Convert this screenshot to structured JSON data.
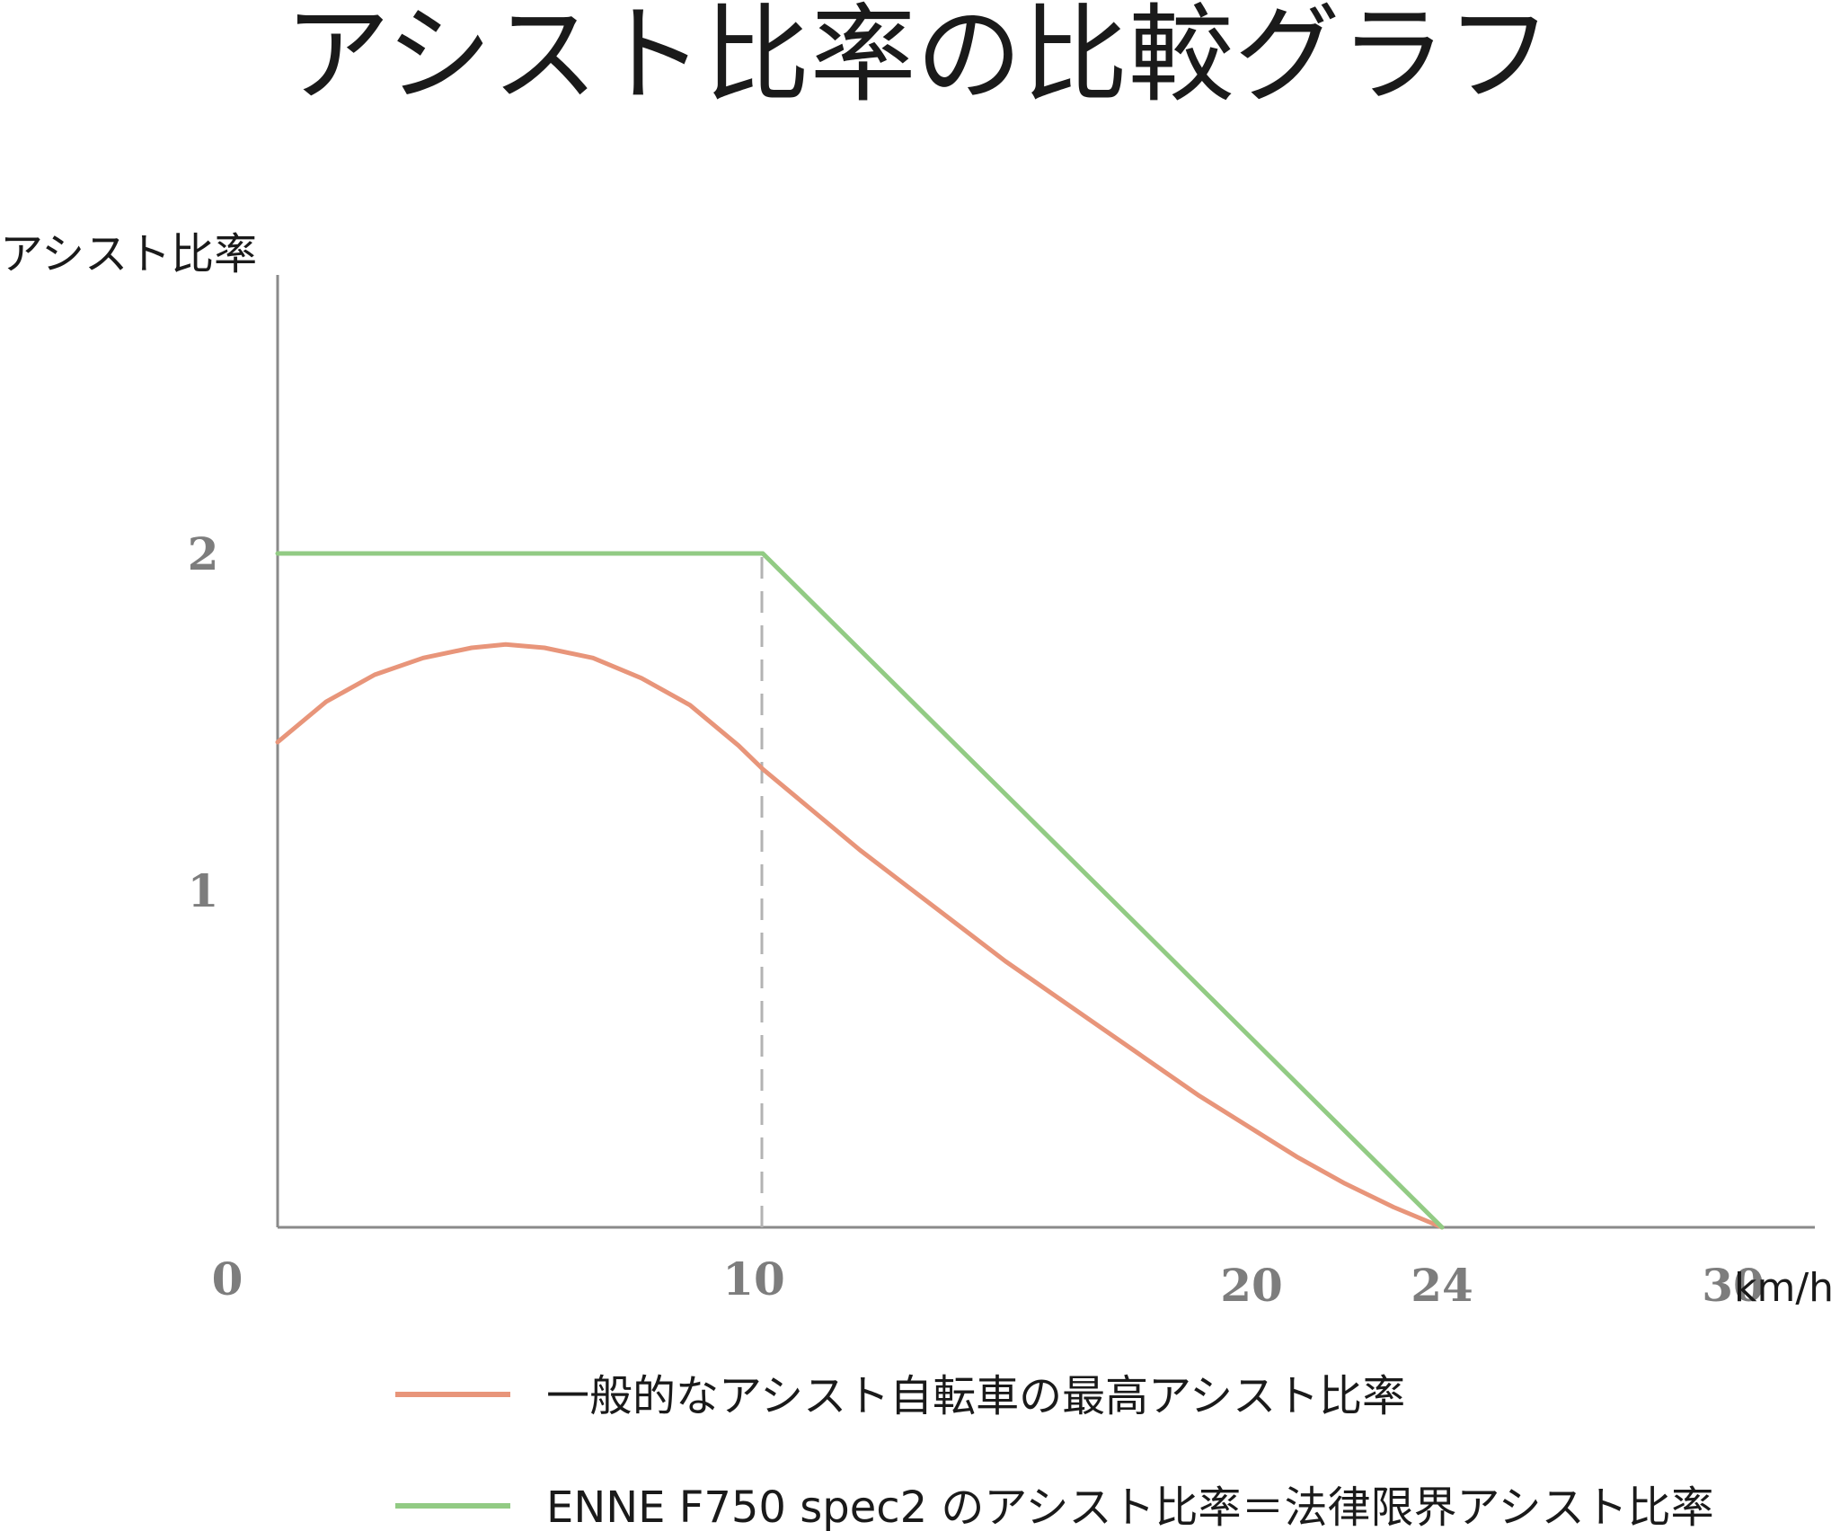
{
  "chart_data": {
    "type": "line",
    "title": "アシスト比率の比較グラフ",
    "ylabel": "アシスト比率",
    "xlabel": "km/h",
    "xlim": [
      0,
      32
    ],
    "ylim": [
      0,
      2.5
    ],
    "x_ticks": [
      {
        "value": 0,
        "label": "0"
      },
      {
        "value": 10,
        "label": "10"
      },
      {
        "value": 20,
        "label": "20"
      },
      {
        "value": 24,
        "label": "24"
      },
      {
        "value": 30,
        "label": "30"
      }
    ],
    "y_ticks": [
      {
        "value": 1,
        "label": "1"
      },
      {
        "value": 2,
        "label": "2"
      }
    ],
    "reference_line": {
      "x": 10,
      "style": "dashed",
      "color": "#b3b3b3"
    },
    "grid": false,
    "legend_position": "bottom",
    "series": [
      {
        "name": "一般的なアシスト自転車の最高アシスト比率",
        "color": "#e8957a",
        "points": [
          [
            0,
            1.44
          ],
          [
            1,
            1.56
          ],
          [
            2,
            1.64
          ],
          [
            3,
            1.69
          ],
          [
            4,
            1.72
          ],
          [
            4.7,
            1.73
          ],
          [
            5.5,
            1.72
          ],
          [
            6.5,
            1.69
          ],
          [
            7.5,
            1.63
          ],
          [
            8.5,
            1.55
          ],
          [
            9.5,
            1.43
          ],
          [
            10,
            1.36
          ],
          [
            11,
            1.24
          ],
          [
            12,
            1.12
          ],
          [
            13,
            1.01
          ],
          [
            14,
            0.9
          ],
          [
            15,
            0.79
          ],
          [
            16,
            0.69
          ],
          [
            17,
            0.59
          ],
          [
            18,
            0.49
          ],
          [
            19,
            0.39
          ],
          [
            20,
            0.3
          ],
          [
            21,
            0.21
          ],
          [
            22,
            0.13
          ],
          [
            23,
            0.06
          ],
          [
            24,
            0
          ]
        ]
      },
      {
        "name": "ENNE F750 spec2 のアシスト比率＝法律限界アシスト比率",
        "color": "#92cb84",
        "points": [
          [
            0,
            2
          ],
          [
            10,
            2
          ],
          [
            24,
            0
          ]
        ]
      }
    ]
  }
}
